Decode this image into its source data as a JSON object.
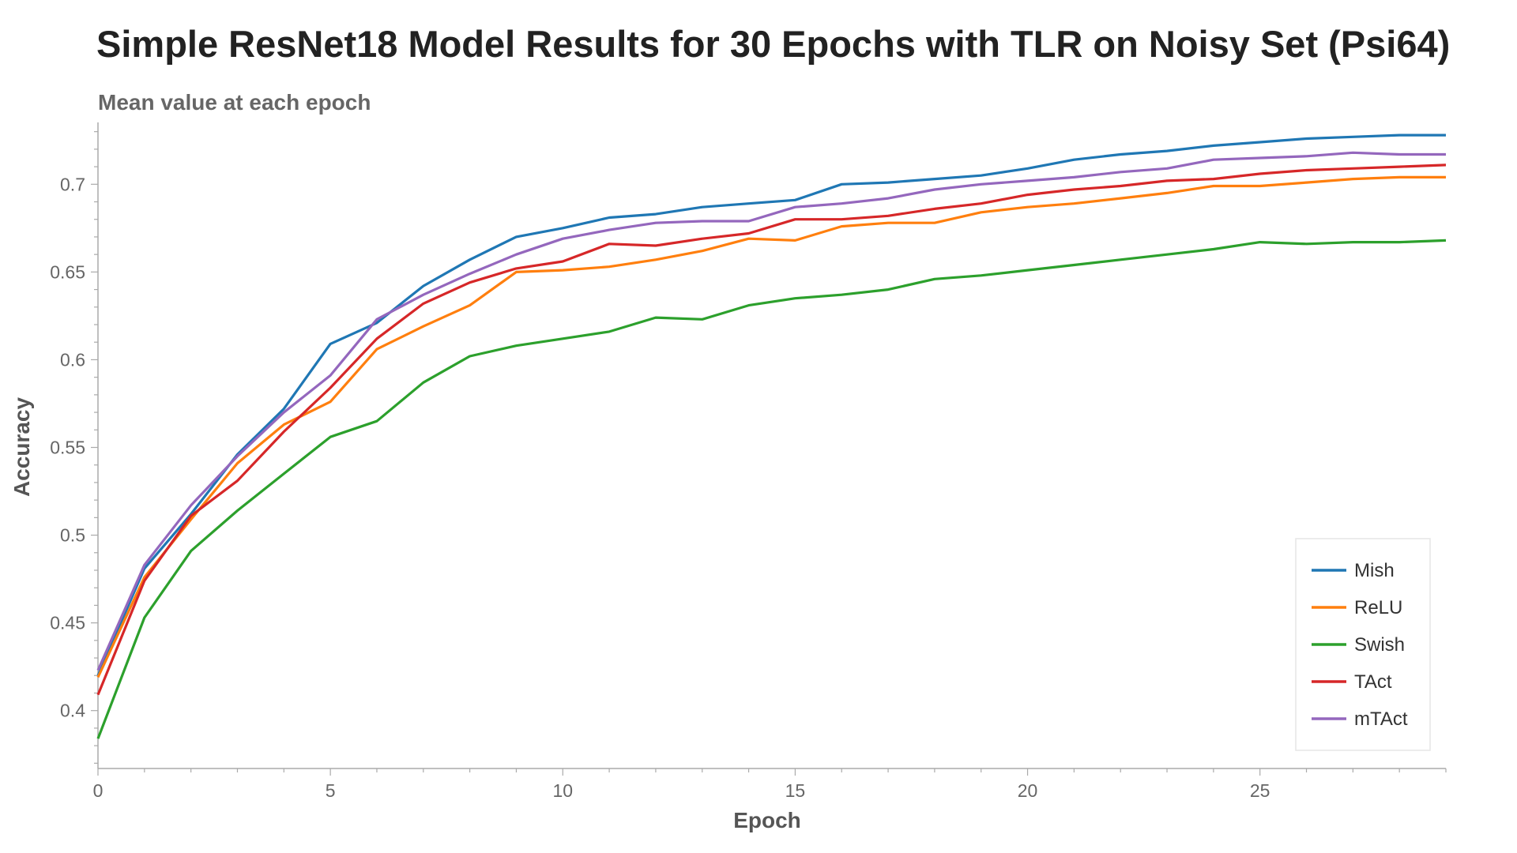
{
  "chart_data": {
    "type": "line",
    "title": "Simple ResNet18 Model Results for 30 Epochs with TLR on Noisy Set (Psi64)",
    "subtitle": "Mean value at each epoch",
    "xlabel": "Epoch",
    "ylabel": "Accuracy",
    "xlim": [
      0,
      29
    ],
    "ylim": [
      0.367,
      0.733
    ],
    "xticks": [
      0,
      5,
      10,
      15,
      20,
      25
    ],
    "yticks": [
      0.4,
      0.45,
      0.5,
      0.55,
      0.6,
      0.65,
      0.7
    ],
    "grid": false,
    "legend_position": "bottom-right",
    "x": [
      0,
      1,
      2,
      3,
      4,
      5,
      6,
      7,
      8,
      9,
      10,
      11,
      12,
      13,
      14,
      15,
      16,
      17,
      18,
      19,
      20,
      21,
      22,
      23,
      24,
      25,
      26,
      27,
      28,
      29
    ],
    "series": [
      {
        "name": "Mish",
        "color": "#1f77b4",
        "values": [
          0.42,
          0.481,
          0.512,
          0.546,
          0.572,
          0.609,
          0.621,
          0.642,
          0.657,
          0.67,
          0.675,
          0.681,
          0.683,
          0.687,
          0.689,
          0.691,
          0.7,
          0.701,
          0.703,
          0.705,
          0.709,
          0.714,
          0.717,
          0.719,
          0.722,
          0.724,
          0.726,
          0.727,
          0.728,
          0.728
        ]
      },
      {
        "name": "ReLU",
        "color": "#ff7f0e",
        "values": [
          0.419,
          0.476,
          0.509,
          0.541,
          0.563,
          0.576,
          0.606,
          0.619,
          0.631,
          0.65,
          0.651,
          0.653,
          0.657,
          0.662,
          0.669,
          0.668,
          0.676,
          0.678,
          0.678,
          0.684,
          0.687,
          0.689,
          0.692,
          0.695,
          0.699,
          0.699,
          0.701,
          0.703,
          0.704,
          0.704
        ]
      },
      {
        "name": "Swish",
        "color": "#2ca02c",
        "values": [
          0.384,
          0.453,
          0.491,
          0.514,
          0.535,
          0.556,
          0.565,
          0.587,
          0.602,
          0.608,
          0.612,
          0.616,
          0.624,
          0.623,
          0.631,
          0.635,
          0.637,
          0.64,
          0.646,
          0.648,
          0.651,
          0.654,
          0.657,
          0.66,
          0.663,
          0.667,
          0.666,
          0.667,
          0.667,
          0.668
        ]
      },
      {
        "name": "TAct",
        "color": "#d62728",
        "values": [
          0.409,
          0.474,
          0.511,
          0.531,
          0.559,
          0.584,
          0.612,
          0.632,
          0.644,
          0.652,
          0.656,
          0.666,
          0.665,
          0.669,
          0.672,
          0.68,
          0.68,
          0.682,
          0.686,
          0.689,
          0.694,
          0.697,
          0.699,
          0.702,
          0.703,
          0.706,
          0.708,
          0.709,
          0.71,
          0.711
        ]
      },
      {
        "name": "mTAct",
        "color": "#9467bd",
        "values": [
          0.423,
          0.483,
          0.517,
          0.545,
          0.57,
          0.591,
          0.623,
          0.637,
          0.649,
          0.66,
          0.669,
          0.674,
          0.678,
          0.679,
          0.679,
          0.687,
          0.689,
          0.692,
          0.697,
          0.7,
          0.702,
          0.704,
          0.707,
          0.709,
          0.714,
          0.715,
          0.716,
          0.718,
          0.717,
          0.717
        ]
      }
    ]
  }
}
